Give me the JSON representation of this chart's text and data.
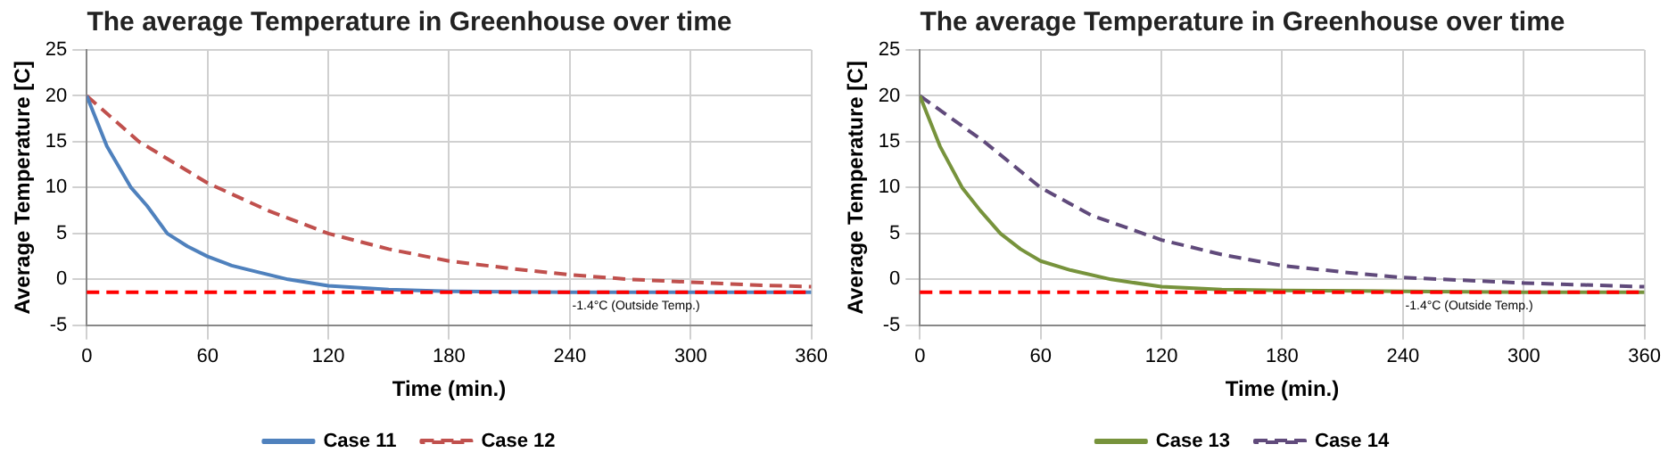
{
  "chart_data": [
    {
      "type": "line",
      "title": "The average Temperature in Greenhouse over time",
      "xlabel": "Time (min.)",
      "ylabel": "Average Temperature [C]",
      "xlim": [
        0,
        360
      ],
      "xticks": [
        0,
        60,
        120,
        180,
        240,
        300,
        360
      ],
      "ylim": [
        -5,
        25
      ],
      "yticks": [
        -5,
        0,
        5,
        10,
        15,
        20,
        25
      ],
      "grid": true,
      "legend": "bottom",
      "marker": "none",
      "series": [
        {
          "name": "Case 11",
          "color": "#4f81bd",
          "line_style": "solid",
          "x": [
            0,
            10,
            22,
            30,
            40,
            50,
            60,
            72,
            85,
            100,
            120,
            150,
            180,
            240,
            300,
            360
          ],
          "values": [
            20,
            14.5,
            10,
            8,
            5,
            3.6,
            2.5,
            1.5,
            0.8,
            0,
            -0.7,
            -1.1,
            -1.3,
            -1.4,
            -1.4,
            -1.4
          ]
        },
        {
          "name": "Case 12",
          "color": "#c0504d",
          "line_style": "dashed",
          "x": [
            0,
            26,
            60,
            90,
            120,
            150,
            180,
            210,
            240,
            270,
            300,
            330,
            360
          ],
          "values": [
            20,
            15,
            10.5,
            7.5,
            5,
            3.3,
            2,
            1.2,
            0.5,
            0,
            -0.3,
            -0.6,
            -0.8
          ]
        }
      ],
      "ref_lines": [
        {
          "axis": "y",
          "value": -1.4,
          "label": "-1.4°C (Outside Temp.)",
          "color": "#ff0000",
          "line_style": "dashed"
        }
      ]
    },
    {
      "type": "line",
      "title": "The average Temperature in Greenhouse over time",
      "xlabel": "Time (min.)",
      "ylabel": "Average Temperature [C]",
      "xlim": [
        0,
        360
      ],
      "xticks": [
        0,
        60,
        120,
        180,
        240,
        300,
        360
      ],
      "ylim": [
        -5,
        25
      ],
      "yticks": [
        -5,
        0,
        5,
        10,
        15,
        20,
        25
      ],
      "grid": true,
      "legend": "bottom",
      "marker": "none",
      "series": [
        {
          "name": "Case 13",
          "color": "#77933c",
          "line_style": "solid",
          "x": [
            0,
            10,
            21,
            30,
            40,
            50,
            60,
            75,
            95,
            120,
            150,
            180,
            240,
            300,
            360
          ],
          "values": [
            20,
            14.5,
            10,
            7.5,
            5,
            3.3,
            2,
            1,
            0,
            -0.8,
            -1.1,
            -1.2,
            -1.3,
            -1.4,
            -1.4
          ]
        },
        {
          "name": "Case 14",
          "color": "#604a7b",
          "line_style": "dashed",
          "x": [
            0,
            32,
            60,
            85,
            120,
            150,
            180,
            210,
            240,
            270,
            300,
            330,
            360
          ],
          "values": [
            20,
            15,
            10,
            7,
            4.3,
            2.7,
            1.5,
            0.8,
            0.2,
            -0.1,
            -0.4,
            -0.6,
            -0.8
          ]
        }
      ],
      "ref_lines": [
        {
          "axis": "y",
          "value": -1.4,
          "label": "-1.4°C (Outside Temp.)",
          "color": "#ff0000",
          "line_style": "dashed"
        }
      ]
    }
  ]
}
